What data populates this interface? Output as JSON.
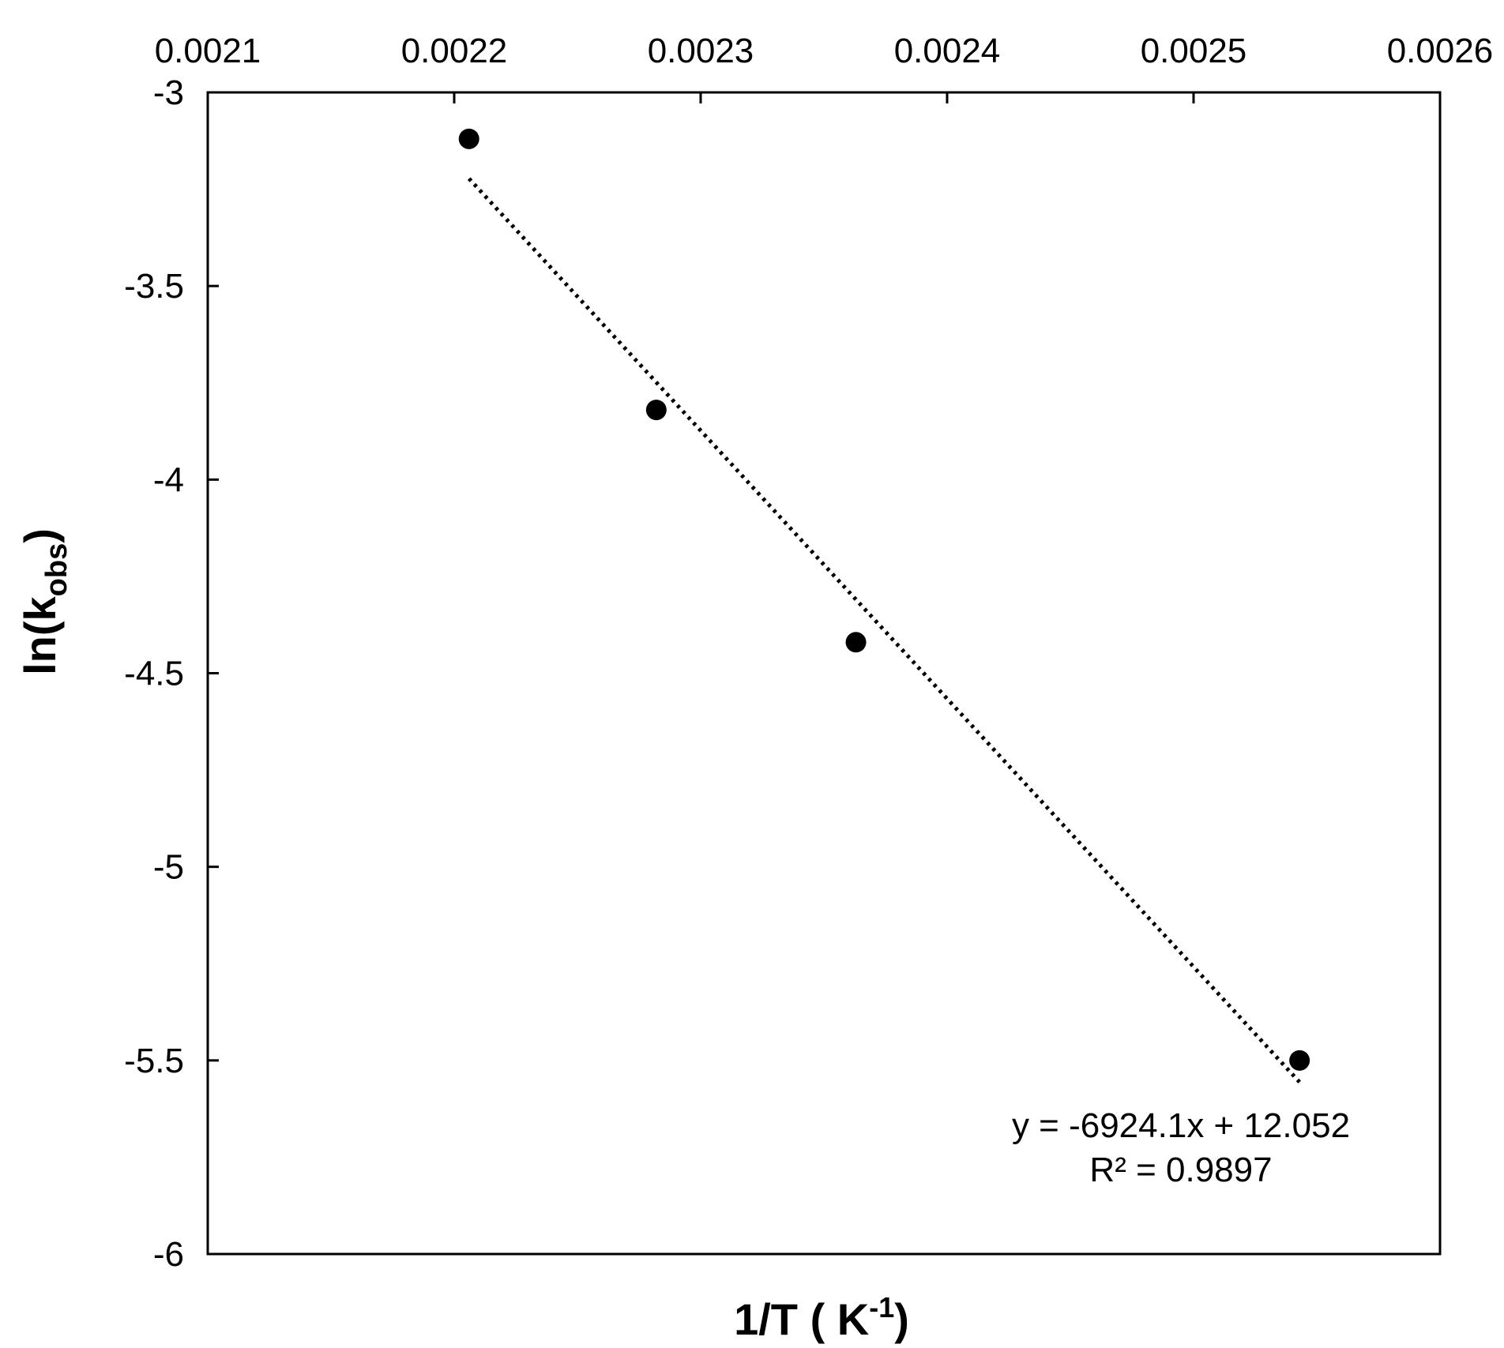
{
  "chart_data": {
    "type": "scatter",
    "title": "",
    "xlabel_main": "1/T ( K",
    "xlabel_sup": "-1",
    "xlabel_end": ")",
    "ylabel_main": "ln(k",
    "ylabel_sub": "obs",
    "ylabel_end": ")",
    "x_axis_position": "top",
    "xlim": [
      0.0021,
      0.0026
    ],
    "ylim": [
      -6,
      -3
    ],
    "x_ticks": [
      0.0021,
      0.0022,
      0.0023,
      0.0024,
      0.0025,
      0.0026
    ],
    "x_tick_labels": [
      "0.0021",
      "0.0022",
      "0.0023",
      "0.0024",
      "0.0025",
      "0.0026"
    ],
    "y_ticks": [
      -3,
      -3.5,
      -4,
      -4.5,
      -5,
      -5.5,
      -6
    ],
    "y_tick_labels": [
      "-3",
      "-3.5",
      "-4",
      "-4.5",
      "-5",
      "-5.5",
      "-6"
    ],
    "grid": false,
    "legend": "none",
    "points": [
      {
        "x": 0.002206,
        "y": -3.12
      },
      {
        "x": 0.002282,
        "y": -3.82
      },
      {
        "x": 0.002363,
        "y": -4.42
      },
      {
        "x": 0.002543,
        "y": -5.5
      }
    ],
    "trendline": {
      "style": "dotted",
      "slope": -6924.1,
      "intercept": 12.052,
      "x_range": [
        0.002206,
        0.002543
      ]
    },
    "equation_text": "y = -6924.1x + 12.052",
    "r2_text": "R² = 0.9897",
    "colors": {
      "marker": "#000000",
      "line": "#000000",
      "axis": "#000000"
    }
  }
}
